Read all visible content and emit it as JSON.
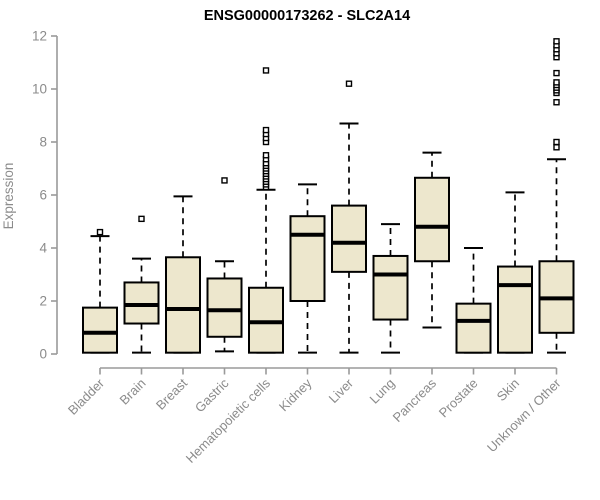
{
  "chart_data": {
    "type": "boxplot",
    "title": "ENSG00000173262 - SLC2A14",
    "ylabel": "Expression",
    "xlabel": "",
    "ylim": [
      0,
      12
    ],
    "yticks": [
      0,
      2,
      4,
      6,
      8,
      10,
      12
    ],
    "grid": false,
    "legend": "none",
    "box_fill": "#ede7cd",
    "box_border": "#000000",
    "axis_color": "#9a9a9a",
    "tick_label_color": "#8b8b8b",
    "title_color": "#000000",
    "categories": [
      "Bladder",
      "Brain",
      "Breast",
      "Gastric",
      "Hematopoietic cells",
      "Kidney",
      "Liver",
      "Lung",
      "Pancreas",
      "Prostate",
      "Skin",
      "Unknown / Other"
    ],
    "series": [
      {
        "category": "Bladder",
        "low": 0.05,
        "q1": 0.05,
        "median": 0.8,
        "q3": 1.75,
        "high": 4.45,
        "outliers": [
          4.6
        ]
      },
      {
        "category": "Brain",
        "low": 0.05,
        "q1": 1.15,
        "median": 1.85,
        "q3": 2.7,
        "high": 3.6,
        "outliers": [
          5.1
        ]
      },
      {
        "category": "Breast",
        "low": 0.05,
        "q1": 0.05,
        "median": 1.7,
        "q3": 3.65,
        "high": 5.95,
        "outliers": []
      },
      {
        "category": "Gastric",
        "low": 0.1,
        "q1": 0.65,
        "median": 1.65,
        "q3": 2.85,
        "high": 3.5,
        "outliers": [
          6.55
        ]
      },
      {
        "category": "Hematopoietic cells",
        "low": 0.05,
        "q1": 0.05,
        "median": 1.2,
        "q3": 2.5,
        "high": 6.2,
        "outliers": [
          6.3,
          6.4,
          6.5,
          6.6,
          6.7,
          6.8,
          6.9,
          7.0,
          7.1,
          7.2,
          7.35,
          7.5,
          8.0,
          8.15,
          8.3,
          8.45,
          10.7
        ]
      },
      {
        "category": "Kidney",
        "low": 0.05,
        "q1": 2.0,
        "median": 4.5,
        "q3": 5.2,
        "high": 6.4,
        "outliers": []
      },
      {
        "category": "Liver",
        "low": 0.05,
        "q1": 3.1,
        "median": 4.2,
        "q3": 5.6,
        "high": 8.7,
        "outliers": [
          10.2
        ]
      },
      {
        "category": "Lung",
        "low": 0.05,
        "q1": 1.3,
        "median": 3.0,
        "q3": 3.7,
        "high": 4.9,
        "outliers": []
      },
      {
        "category": "Pancreas",
        "low": 1.0,
        "q1": 3.5,
        "median": 4.8,
        "q3": 6.65,
        "high": 7.6,
        "outliers": []
      },
      {
        "category": "Prostate",
        "low": 0.05,
        "q1": 0.05,
        "median": 1.25,
        "q3": 1.9,
        "high": 4.0,
        "outliers": []
      },
      {
        "category": "Skin",
        "low": 0.05,
        "q1": 0.05,
        "median": 2.6,
        "q3": 3.3,
        "high": 6.1,
        "outliers": []
      },
      {
        "category": "Unknown / Other",
        "low": 0.05,
        "q1": 0.8,
        "median": 2.1,
        "q3": 3.5,
        "high": 7.35,
        "outliers": [
          7.8,
          8.0,
          9.5,
          9.85,
          9.95,
          10.05,
          10.15,
          10.25,
          10.6,
          11.2,
          11.35,
          11.5,
          11.65,
          11.8
        ]
      }
    ]
  }
}
